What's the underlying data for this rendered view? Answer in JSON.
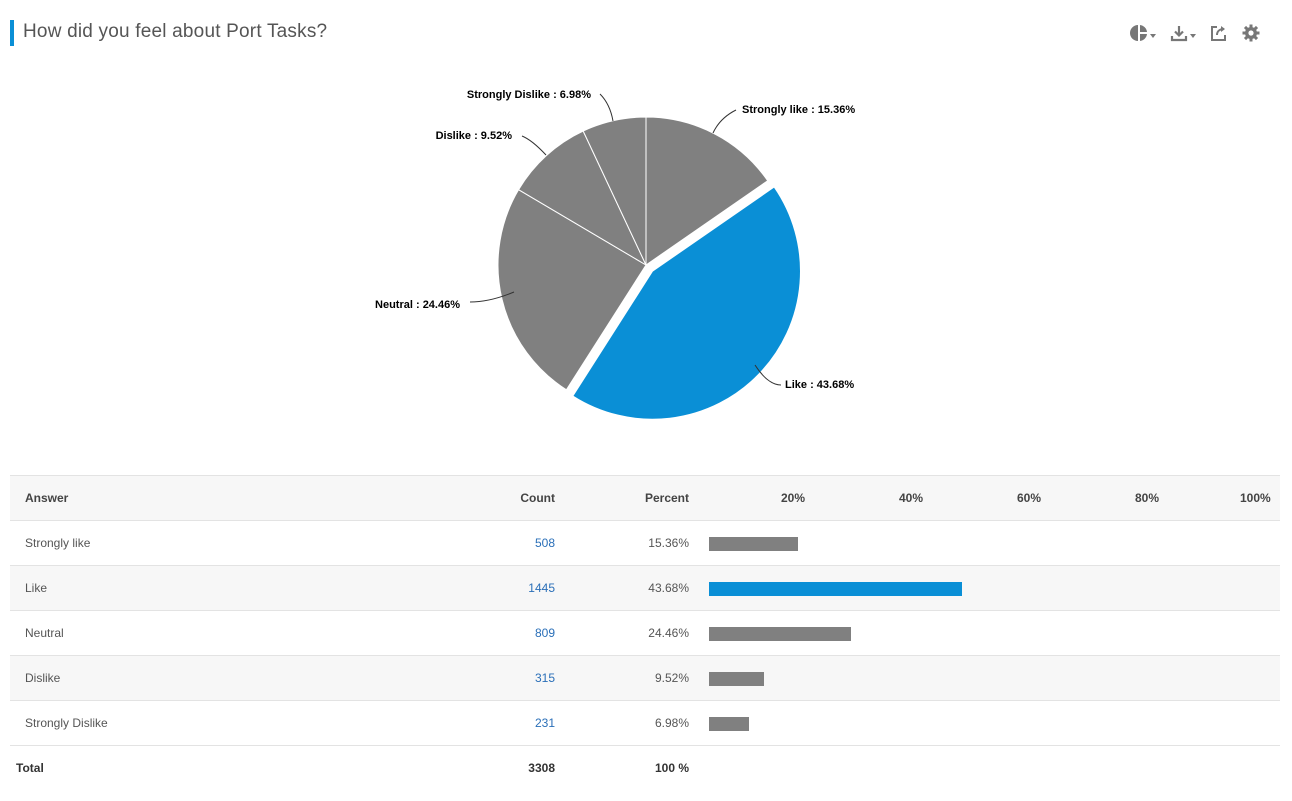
{
  "header": {
    "title": "How did you feel about Port Tasks?",
    "accent_color": "#0a8fd6",
    "tools": [
      "chart-type-icon",
      "download-icon",
      "share-icon",
      "gear-icon"
    ]
  },
  "chart_data": {
    "type": "pie",
    "categories": [
      "Strongly like",
      "Like",
      "Neutral",
      "Dislike",
      "Strongly Dislike"
    ],
    "values": [
      15.36,
      43.68,
      24.46,
      9.52,
      6.98
    ],
    "labels": [
      "Strongly like : 15.36%",
      "Like : 43.68%",
      "Neutral : 24.46%",
      "Dislike : 9.52%",
      "Strongly Dislike : 6.98%"
    ],
    "colors": [
      "#808080",
      "#0a8fd6",
      "#808080",
      "#808080",
      "#808080"
    ],
    "highlighted": "Like"
  },
  "table": {
    "headers": {
      "answer": "Answer",
      "count": "Count",
      "percent": "Percent"
    },
    "scale_labels": [
      "20%",
      "40%",
      "60%",
      "80%",
      "100%"
    ],
    "rows": [
      {
        "answer": "Strongly like",
        "count": "508",
        "percent": "15.36%",
        "value": 15.36
      },
      {
        "answer": "Like",
        "count": "1445",
        "percent": "43.68%",
        "value": 43.68
      },
      {
        "answer": "Neutral",
        "count": "809",
        "percent": "24.46%",
        "value": 24.46
      },
      {
        "answer": "Dislike",
        "count": "315",
        "percent": "9.52%",
        "value": 9.52
      },
      {
        "answer": "Strongly Dislike",
        "count": "231",
        "percent": "6.98%",
        "value": 6.98
      }
    ],
    "total": {
      "label": "Total",
      "count": "3308",
      "percent": "100 %"
    }
  }
}
